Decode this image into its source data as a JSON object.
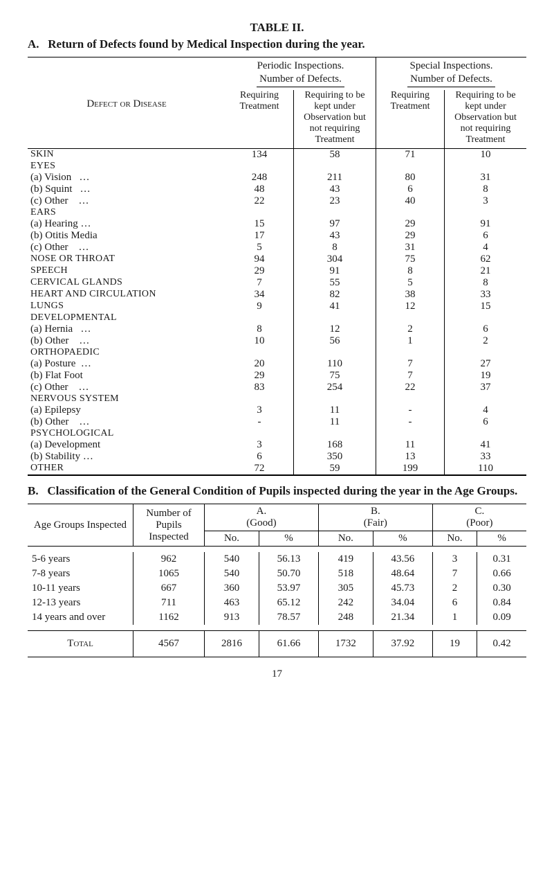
{
  "title": "TABLE II.",
  "sectionA": {
    "heading_prefix": "A.",
    "heading": "Return of Defects found by Medical Inspection during the year.",
    "col_defect": "Defect or Disease",
    "periodic": "Periodic Inspections.",
    "special": "Special Inspections.",
    "num_defects": "Number of Defects.",
    "req_treat": "Requiring Treatment",
    "req_obs": "Requiring to be kept under Observation but not requiring Treatment",
    "rows": [
      {
        "label": "Skin",
        "cls": "caps",
        "periodic": [
          134,
          58
        ],
        "special": [
          71,
          10
        ]
      },
      {
        "label": "Eyes",
        "cls": "caps",
        "periodic": [
          "",
          ""
        ],
        "special": [
          "",
          ""
        ]
      },
      {
        "label": "(a) Vision   …",
        "cls": "indent1",
        "periodic": [
          248,
          211
        ],
        "special": [
          80,
          31
        ]
      },
      {
        "label": "(b) Squint   …",
        "cls": "indent1",
        "periodic": [
          48,
          43
        ],
        "special": [
          6,
          8
        ]
      },
      {
        "label": "(c) Other    …",
        "cls": "indent1",
        "periodic": [
          22,
          23
        ],
        "special": [
          40,
          3
        ]
      },
      {
        "label": "Ears",
        "cls": "caps",
        "periodic": [
          "",
          ""
        ],
        "special": [
          "",
          ""
        ]
      },
      {
        "label": "(a) Hearing …",
        "cls": "indent1",
        "periodic": [
          15,
          97
        ],
        "special": [
          29,
          91
        ]
      },
      {
        "label": "(b) Otitis Media",
        "cls": "indent1",
        "periodic": [
          17,
          43
        ],
        "special": [
          29,
          6
        ]
      },
      {
        "label": "(c) Other    …",
        "cls": "indent1",
        "periodic": [
          5,
          8
        ],
        "special": [
          31,
          4
        ]
      },
      {
        "label": "Nose or Throat",
        "cls": "caps",
        "periodic": [
          94,
          304
        ],
        "special": [
          75,
          62
        ]
      },
      {
        "label": "Speech",
        "cls": "caps",
        "periodic": [
          29,
          91
        ],
        "special": [
          8,
          21
        ]
      },
      {
        "label": "Cervical Glands",
        "cls": "caps",
        "periodic": [
          7,
          55
        ],
        "special": [
          5,
          8
        ]
      },
      {
        "label": "Heart and Circulation",
        "cls": "caps",
        "periodic": [
          34,
          82
        ],
        "special": [
          38,
          33
        ]
      },
      {
        "label": "Lungs",
        "cls": "caps",
        "periodic": [
          9,
          41
        ],
        "special": [
          12,
          15
        ]
      },
      {
        "label": "Developmental",
        "cls": "caps",
        "periodic": [
          "",
          ""
        ],
        "special": [
          "",
          ""
        ]
      },
      {
        "label": "(a) Hernia   …",
        "cls": "indent1",
        "periodic": [
          8,
          12
        ],
        "special": [
          2,
          6
        ]
      },
      {
        "label": "(b) Other    …",
        "cls": "indent1",
        "periodic": [
          10,
          56
        ],
        "special": [
          1,
          2
        ]
      },
      {
        "label": "Orthopaedic",
        "cls": "caps",
        "periodic": [
          "",
          ""
        ],
        "special": [
          "",
          ""
        ]
      },
      {
        "label": "(a) Posture  …",
        "cls": "indent1",
        "periodic": [
          20,
          110
        ],
        "special": [
          7,
          27
        ]
      },
      {
        "label": "(b) Flat Foot",
        "cls": "indent1",
        "periodic": [
          29,
          75
        ],
        "special": [
          7,
          19
        ]
      },
      {
        "label": "(c) Other    …",
        "cls": "indent1",
        "periodic": [
          83,
          254
        ],
        "special": [
          22,
          37
        ]
      },
      {
        "label": "Nervous system",
        "cls": "caps",
        "periodic": [
          "",
          ""
        ],
        "special": [
          "",
          ""
        ]
      },
      {
        "label": "(a) Epilepsy",
        "cls": "indent1",
        "periodic": [
          3,
          11
        ],
        "special": [
          "-",
          4
        ]
      },
      {
        "label": "(b) Other    …",
        "cls": "indent1",
        "periodic": [
          "-",
          11
        ],
        "special": [
          "-",
          6
        ]
      },
      {
        "label": "Psychological",
        "cls": "caps",
        "periodic": [
          "",
          ""
        ],
        "special": [
          "",
          ""
        ]
      },
      {
        "label": "(a) Development",
        "cls": "indent1",
        "periodic": [
          3,
          168
        ],
        "special": [
          11,
          41
        ]
      },
      {
        "label": "(b) Stability …",
        "cls": "indent1",
        "periodic": [
          6,
          350
        ],
        "special": [
          13,
          33
        ]
      },
      {
        "label": "Other",
        "cls": "caps",
        "periodic": [
          72,
          59
        ],
        "special": [
          199,
          110
        ]
      }
    ]
  },
  "sectionB": {
    "heading_prefix": "B.",
    "heading": "Classification of the General Condition of Pupils inspected during the year in the Age Groups.",
    "col_age": "Age Groups Inspected",
    "col_num": "Number of Pupils Inspected",
    "groupA": "A.\n(Good)",
    "groupB": "B.\n(Fair)",
    "groupC": "C.\n(Poor)",
    "sub_no": "No.",
    "sub_pct": "%",
    "rows": [
      {
        "age": "5-6 years",
        "n": 962,
        "a": [
          540,
          "56.13"
        ],
        "b": [
          419,
          "43.56"
        ],
        "c": [
          3,
          "0.31"
        ]
      },
      {
        "age": "7-8 years",
        "n": 1065,
        "a": [
          540,
          "50.70"
        ],
        "b": [
          518,
          "48.64"
        ],
        "c": [
          7,
          "0.66"
        ]
      },
      {
        "age": "10-11 years",
        "n": 667,
        "a": [
          360,
          "53.97"
        ],
        "b": [
          305,
          "45.73"
        ],
        "c": [
          2,
          "0.30"
        ]
      },
      {
        "age": "12-13 years",
        "n": 711,
        "a": [
          463,
          "65.12"
        ],
        "b": [
          242,
          "34.04"
        ],
        "c": [
          6,
          "0.84"
        ]
      },
      {
        "age": "14 years and over",
        "n": 1162,
        "a": [
          913,
          "78.57"
        ],
        "b": [
          248,
          "21.34"
        ],
        "c": [
          1,
          "0.09"
        ]
      }
    ],
    "total": {
      "label": "Total",
      "n": 4567,
      "a": [
        2816,
        "61.66"
      ],
      "b": [
        1732,
        "37.92"
      ],
      "c": [
        19,
        "0.42"
      ]
    }
  },
  "page": "17",
  "colors": {
    "text": "#1a1a1a",
    "rule": "#000000",
    "bg": "#ffffff"
  }
}
